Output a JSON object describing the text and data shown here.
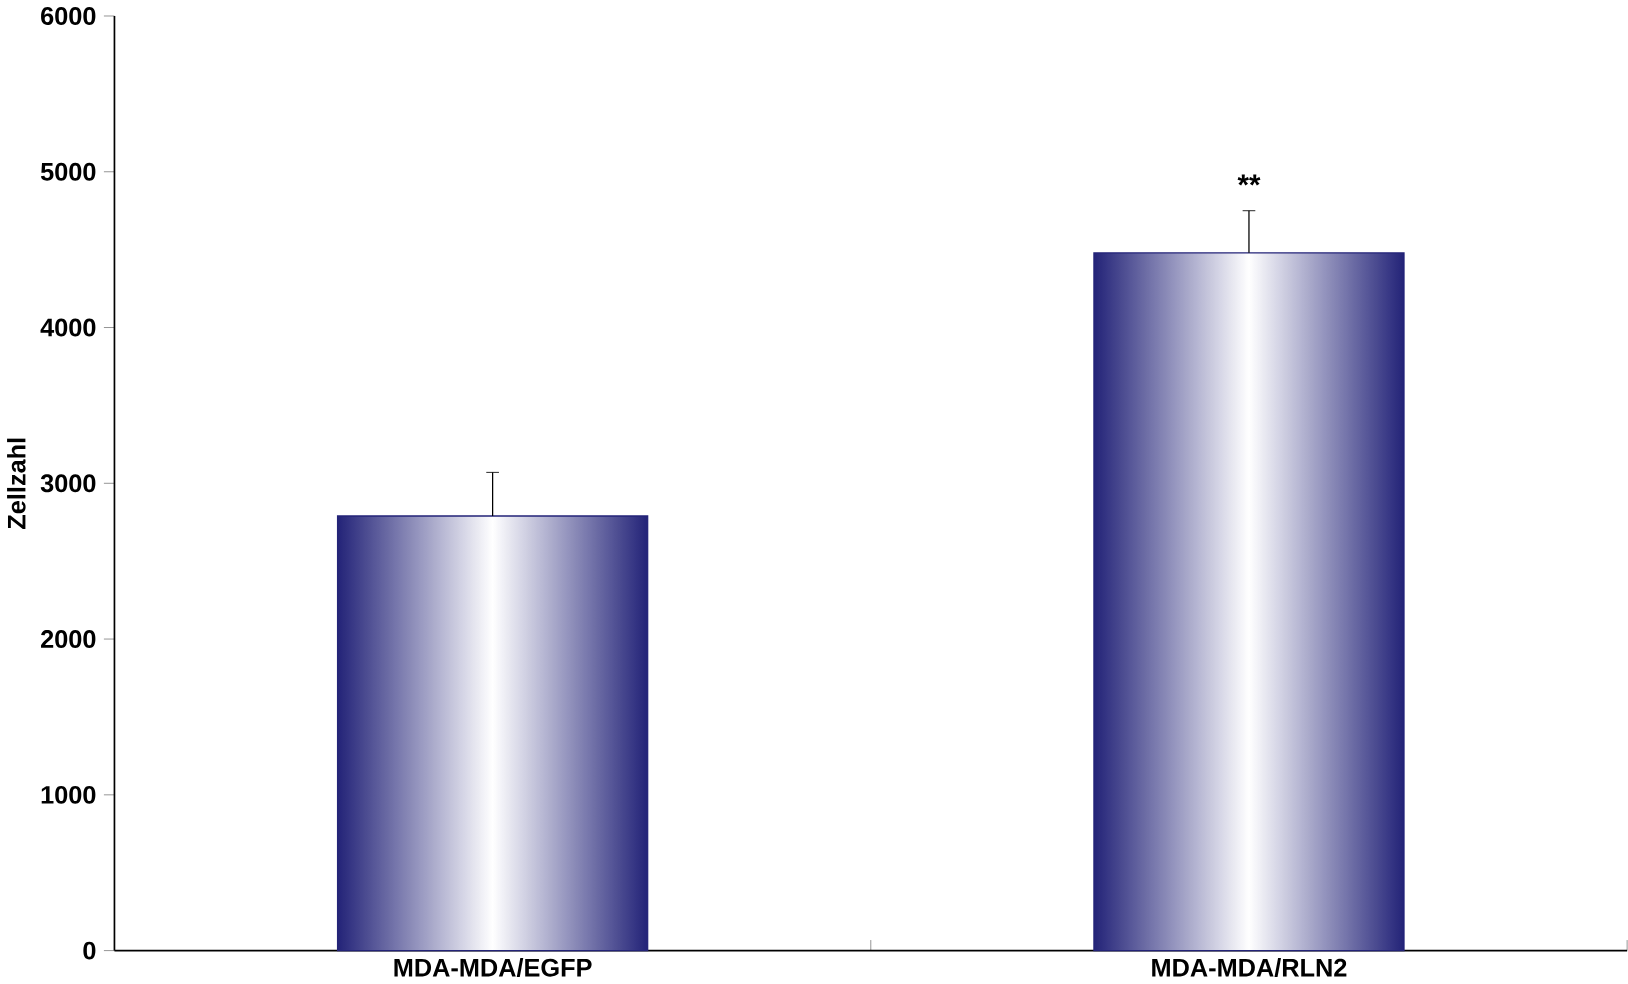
{
  "chart_data": {
    "type": "bar",
    "ylabel": "Zellzahl",
    "categories": [
      "MDA-MDA/EGFP",
      "MDA-MDA/RLN2"
    ],
    "values": [
      2790,
      4480
    ],
    "errors": [
      280,
      270
    ],
    "color": "#232378",
    "ylim": [
      0,
      6000
    ],
    "yticks": [
      0,
      1000,
      2000,
      3000,
      4000,
      5000,
      6000
    ],
    "grid": false,
    "annotations": [
      "**"
    ]
  }
}
